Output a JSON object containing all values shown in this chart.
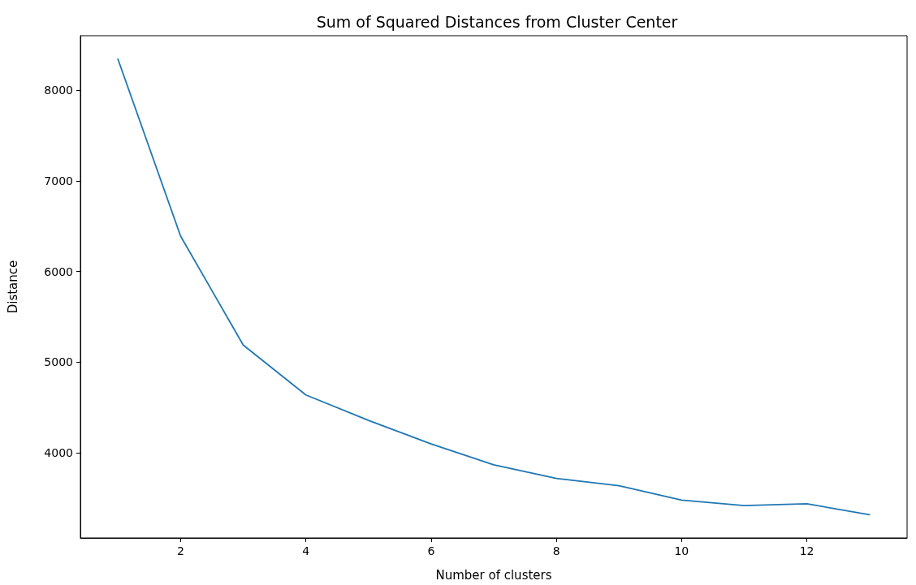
{
  "chart_data": {
    "type": "line",
    "title": "Sum of Squared Distances from Cluster Center",
    "xlabel": "Number of clusters",
    "ylabel": "Distance",
    "x": [
      1,
      2,
      3,
      4,
      5,
      6,
      7,
      8,
      9,
      10,
      11,
      12,
      13
    ],
    "series": [
      {
        "color": "#1f77b4",
        "values": [
          8340,
          6390,
          5190,
          4640,
          4360,
          4100,
          3870,
          3720,
          3640,
          3480,
          3420,
          3440,
          3320
        ]
      }
    ],
    "xlim": [
      0.4,
      13.6
    ],
    "ylim": [
      3064,
      8599
    ],
    "xticks": [
      2,
      4,
      6,
      8,
      10,
      12
    ],
    "yticks": [
      4000,
      5000,
      6000,
      7000,
      8000
    ],
    "grid": false,
    "marker": "none",
    "line_style": "solid"
  }
}
